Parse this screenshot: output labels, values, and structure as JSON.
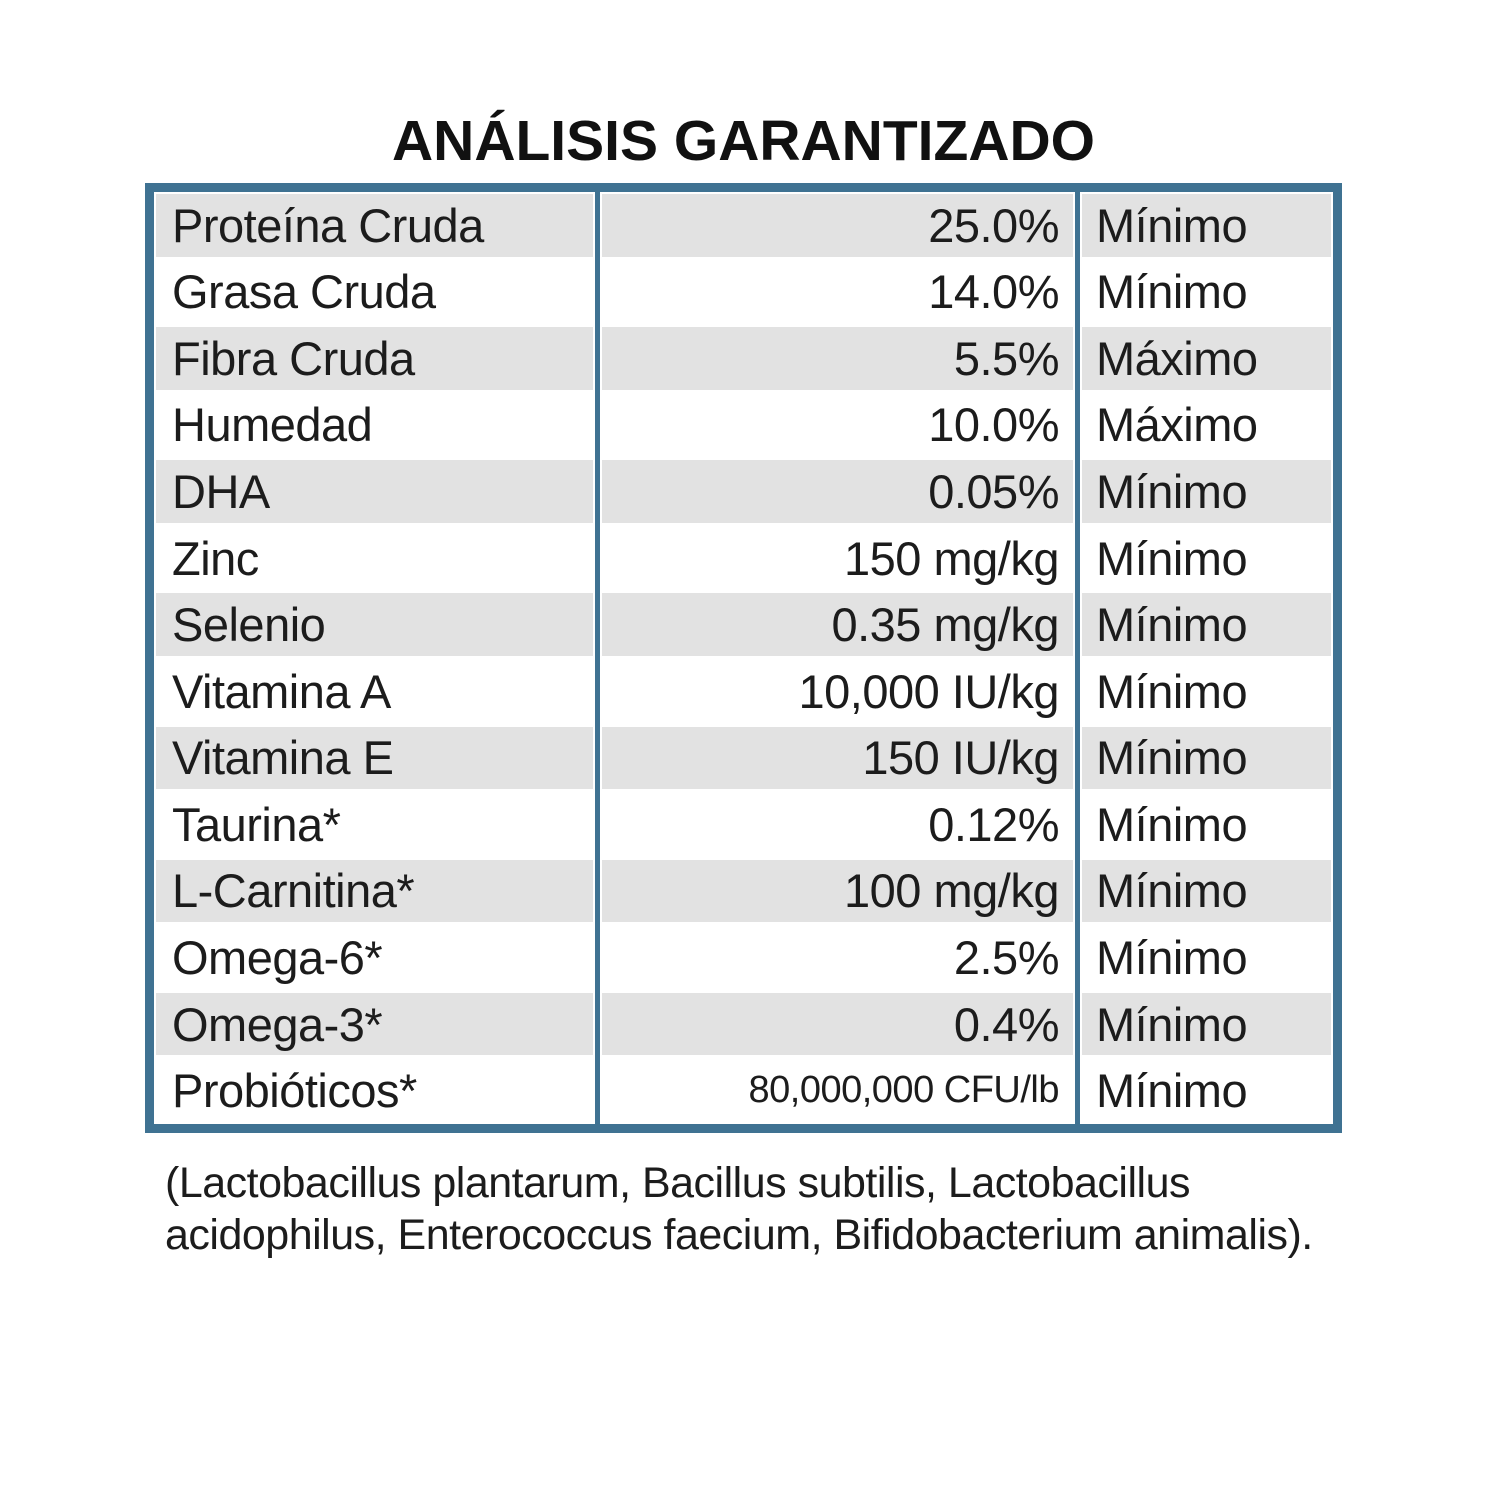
{
  "title": "ANÁLISIS GARANTIZADO",
  "colors": {
    "table_border": "#3f7292",
    "row_shade": "#e2e2e2",
    "text": "#1c1c1c",
    "background": "#ffffff"
  },
  "table": {
    "rows": [
      {
        "label": "Proteína Cruda",
        "value": "25.0%",
        "qualifier": "Mínimo"
      },
      {
        "label": "Grasa Cruda",
        "value": "14.0%",
        "qualifier": "Mínimo"
      },
      {
        "label": "Fibra Cruda",
        "value": "5.5%",
        "qualifier": "Máximo"
      },
      {
        "label": "Humedad",
        "value": "10.0%",
        "qualifier": "Máximo"
      },
      {
        "label": "DHA",
        "value": "0.05%",
        "qualifier": "Mínimo"
      },
      {
        "label": "Zinc",
        "value": "150 mg/kg",
        "qualifier": "Mínimo"
      },
      {
        "label": "Selenio",
        "value": "0.35 mg/kg",
        "qualifier": "Mínimo"
      },
      {
        "label": "Vitamina A",
        "value": "10,000 IU/kg",
        "qualifier": "Mínimo"
      },
      {
        "label": "Vitamina E",
        "value": "150 IU/kg",
        "qualifier": "Mínimo"
      },
      {
        "label": "Taurina*",
        "value": "0.12%",
        "qualifier": "Mínimo"
      },
      {
        "label": "L-Carnitina*",
        "value": "100 mg/kg",
        "qualifier": "Mínimo"
      },
      {
        "label": "Omega-6*",
        "value": "2.5%",
        "qualifier": "Mínimo"
      },
      {
        "label": "Omega-3*",
        "value": "0.4%",
        "qualifier": "Mínimo"
      },
      {
        "label": "Probióticos*",
        "value": "80,000,000 CFU/lb",
        "qualifier": "Mínimo"
      }
    ]
  },
  "footnote": "(Lactobacillus plantarum, Bacillus subtilis, Lactobacillus acidophilus, Enterococcus faecium, Bifidobacterium animalis)."
}
